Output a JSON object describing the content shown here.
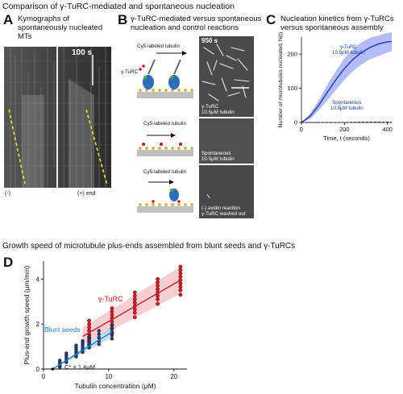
{
  "figure_title": "Comparison of γ-TuRC-mediated and spontaneous nucleation",
  "panelA": {
    "letter": "A",
    "title": "Kymographs of spontaneously nucleated MTs",
    "time_label": "100 s",
    "minus_label": "(-)",
    "plus_label": "(+) end"
  },
  "panelB": {
    "letter": "B",
    "title": "γ-TuRC-mediated versus spontaneous nucleation and control reactions",
    "time_label": "950 s",
    "row1_tubulin_label": "Cy5-labeled tubulin",
    "row1_gturc_label": "γ-TuRC",
    "row1_overlay": "γ-TuRC\n10.5μM tubulin",
    "row2_tubulin_label": "Cy5-labeled tubulin",
    "row2_overlay": "Spontaneous\n10.5μM tubulin",
    "row3_tubulin_label": "Cy5-labeled tubulin",
    "row3_overlay": "(-) avidin reaction\nγ-TuRC washed out"
  },
  "panelC": {
    "letter": "C",
    "title": "Nucleation kinetics from γ-TuRCs versus spontaneous assembly",
    "ylabel": "Number of microtubules nucleated, N(t)",
    "xlabel": "Time, t (seconds)",
    "series_gturc_label": "γ-TuRC\n10.5μM tubulin",
    "series_spont_label": "Spontaneous\n10.5μM tubulin"
  },
  "panelD": {
    "letter": "D",
    "section_title": "Growth speed of microtubule plus-ends assembled from blunt seeds and γ-TuRCs",
    "ylabel": "Plus-end growth speed (μm/min)",
    "xlabel": "Tubulin concentration (μM)",
    "gturc_label": "γ-TuRC",
    "seeds_label": "Blunt seeds",
    "cstar_label": "C* = 1.4μM"
  },
  "colors": {
    "gturc_red": "#c8202a",
    "gturc_band": "#f4b9bd",
    "seeds_blue": "#1f7fc8",
    "seeds_band": "#a9d3ef",
    "kinetics_blue": "#2a36b8",
    "kinetics_band": "#9aa6f0"
  },
  "chart_data": [
    {
      "panel": "C",
      "type": "line",
      "title": "Nucleation kinetics from γ-TuRCs versus spontaneous assembly",
      "xlabel": "Time, t (seconds)",
      "ylabel": "Number of microtubules nucleated, N(t)",
      "xlim": [
        0,
        420
      ],
      "ylim": [
        0,
        250
      ],
      "xticks": [
        0,
        200,
        400
      ],
      "yticks": [
        0,
        100,
        200
      ],
      "series": [
        {
          "name": "γ-TuRC 10.5μM tubulin",
          "x": [
            0,
            40,
            80,
            120,
            160,
            200,
            240,
            280,
            320,
            360,
            400,
            420
          ],
          "y": [
            0,
            18,
            50,
            88,
            125,
            158,
            185,
            205,
            220,
            230,
            236,
            237
          ],
          "band": [
            [
              0,
              0
            ],
            [
              10,
              26
            ],
            [
              35,
              65
            ],
            [
              65,
              110
            ],
            [
              95,
              150
            ],
            [
              125,
              188
            ],
            [
              150,
              215
            ],
            [
              170,
              235
            ],
            [
              185,
              248
            ],
            [
              195,
              255
            ],
            [
              205,
              262
            ],
            [
              208,
              264
            ]
          ]
        },
        {
          "name": "Spontaneous 10.5μM tubulin",
          "x": [
            0,
            100,
            200,
            300,
            400,
            420
          ],
          "y": [
            0,
            0,
            0,
            1,
            1,
            1
          ]
        }
      ]
    },
    {
      "panel": "D",
      "type": "scatter",
      "title": "Growth speed of microtubule plus-ends assembled from blunt seeds and γ-TuRCs",
      "xlabel": "Tubulin concentration (μM)",
      "ylabel": "Plus-end growth speed (μm/min)",
      "xlim": [
        0,
        22
      ],
      "ylim": [
        0,
        4.8
      ],
      "xticks": [
        0,
        10,
        20
      ],
      "yticks": [
        0,
        2,
        4
      ],
      "series": [
        {
          "name": "γ-TuRC",
          "x_levels": [
            7,
            10.5,
            14,
            17.5,
            21
          ],
          "points": [
            [
              7,
              1.1
            ],
            [
              7,
              1.25
            ],
            [
              7,
              1.4
            ],
            [
              7,
              1.55
            ],
            [
              7,
              1.7
            ],
            [
              7,
              1.85
            ],
            [
              7,
              2.0
            ],
            [
              7,
              2.15
            ],
            [
              10.5,
              1.6
            ],
            [
              10.5,
              1.8
            ],
            [
              10.5,
              1.95
            ],
            [
              10.5,
              2.1
            ],
            [
              10.5,
              2.25
            ],
            [
              10.5,
              2.4
            ],
            [
              10.5,
              2.55
            ],
            [
              10.5,
              2.7
            ],
            [
              14,
              2.3
            ],
            [
              14,
              2.5
            ],
            [
              14,
              2.65
            ],
            [
              14,
              2.8
            ],
            [
              14,
              2.95
            ],
            [
              14,
              3.1
            ],
            [
              14,
              3.25
            ],
            [
              14,
              3.4
            ],
            [
              17.5,
              2.9
            ],
            [
              17.5,
              3.1
            ],
            [
              17.5,
              3.25
            ],
            [
              17.5,
              3.4
            ],
            [
              17.5,
              3.55
            ],
            [
              17.5,
              3.7
            ],
            [
              17.5,
              3.85
            ],
            [
              17.5,
              4.0
            ],
            [
              21,
              3.3
            ],
            [
              21,
              3.5
            ],
            [
              21,
              3.65
            ],
            [
              21,
              3.8
            ],
            [
              21,
              3.95
            ],
            [
              21,
              4.1
            ],
            [
              21,
              4.25
            ],
            [
              21,
              4.4
            ],
            [
              21,
              4.55
            ]
          ],
          "fit": [
            [
              6,
              1.45
            ],
            [
              21,
              3.95
            ]
          ],
          "band_low": [
            [
              6,
              1.05
            ],
            [
              21,
              3.35
            ]
          ],
          "band_high": [
            [
              6,
              1.85
            ],
            [
              21,
              4.55
            ]
          ]
        },
        {
          "name": "Blunt seeds",
          "x_levels": [
            2.5,
            3.5,
            5,
            6,
            7,
            8.5,
            10.5
          ],
          "points": [
            [
              2.5,
              0.08
            ],
            [
              2.5,
              0.15
            ],
            [
              2.5,
              0.22
            ],
            [
              2.5,
              0.3
            ],
            [
              2.5,
              0.38
            ],
            [
              3.5,
              0.3
            ],
            [
              3.5,
              0.4
            ],
            [
              3.5,
              0.5
            ],
            [
              3.5,
              0.6
            ],
            [
              3.5,
              0.7
            ],
            [
              5,
              0.55
            ],
            [
              5,
              0.65
            ],
            [
              5,
              0.75
            ],
            [
              5,
              0.85
            ],
            [
              5,
              0.95
            ],
            [
              5,
              1.05
            ],
            [
              6,
              0.75
            ],
            [
              6,
              0.85
            ],
            [
              6,
              0.95
            ],
            [
              6,
              1.05
            ],
            [
              6,
              1.15
            ],
            [
              6,
              1.25
            ],
            [
              7,
              0.95
            ],
            [
              7,
              1.05
            ],
            [
              7,
              1.15
            ],
            [
              7,
              1.25
            ],
            [
              7,
              1.35
            ],
            [
              7,
              1.45
            ],
            [
              8.5,
              1.1
            ],
            [
              8.5,
              1.25
            ],
            [
              8.5,
              1.4
            ],
            [
              8.5,
              1.55
            ],
            [
              8.5,
              1.7
            ],
            [
              10.5,
              1.35
            ],
            [
              10.5,
              1.5
            ],
            [
              10.5,
              1.65
            ],
            [
              10.5,
              1.8
            ],
            [
              10.5,
              1.95
            ]
          ],
          "fit": [
            [
              1.4,
              0
            ],
            [
              10.5,
              1.65
            ]
          ],
          "band_low": [
            [
              1.4,
              0
            ],
            [
              10.5,
              1.4
            ]
          ],
          "band_high": [
            [
              1.4,
              0
            ],
            [
              10.5,
              1.9
            ]
          ]
        }
      ]
    }
  ]
}
